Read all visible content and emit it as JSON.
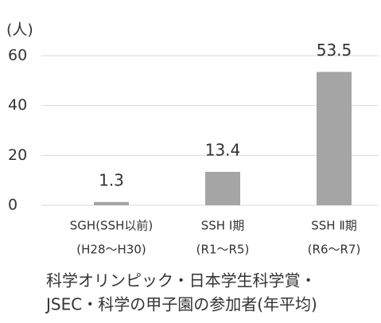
{
  "chart_data": {
    "type": "bar",
    "y_axis_label": "(人)",
    "categories": [
      [
        "SGH(SSH以前)",
        "(H28〜H30)"
      ],
      [
        "SSH Ⅰ期",
        "(R1〜R5)"
      ],
      [
        "SSH Ⅱ期",
        "(R6〜R7)"
      ]
    ],
    "values": [
      1.3,
      13.4,
      53.5
    ],
    "color": "#a5a5a5",
    "ylim": [
      0,
      60
    ],
    "yticks": [
      0,
      20,
      40,
      60
    ],
    "grid": true,
    "caption": [
      "科学オリンピック・日本学生科学賞・",
      "JSEC・科学の甲子園の参加者(年平均)"
    ]
  }
}
